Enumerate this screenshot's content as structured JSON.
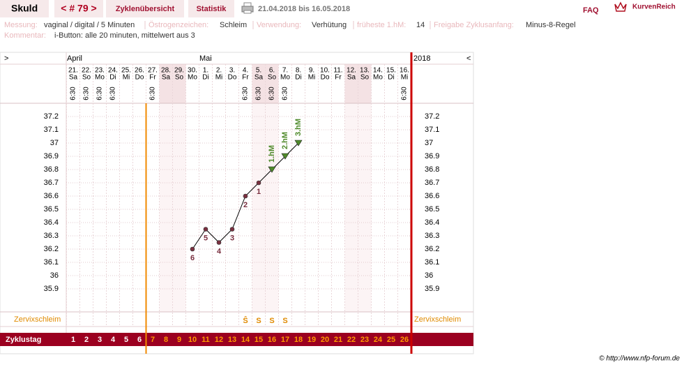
{
  "header": {
    "name": "Skuld",
    "cycle_nav": "< # 79 >",
    "tabs": [
      "Zyklenübersicht",
      "Statistik"
    ],
    "date_range": "21.04.2018 bis 16.05.2018",
    "faq": "FAQ",
    "logo": "KurvenReich"
  },
  "info": {
    "fields": [
      {
        "label": "Messung:",
        "value": "vaginal / digital / 5 Minuten"
      },
      {
        "label": "Östrogenzeichen:",
        "value": "Schleim"
      },
      {
        "label": "Verwendung:",
        "value": "Verhütung"
      },
      {
        "label": "früheste 1.hM:",
        "value": "14"
      },
      {
        "label": "Freigabe Zyklusanfang:",
        "value": "Minus-8-Regel"
      }
    ],
    "comment": {
      "label": "Kommentar:",
      "value": "i-Button: alle 20 minuten, mittelwert aus 3"
    }
  },
  "chart_nav": {
    "left": ">",
    "right": "<"
  },
  "chart_data": {
    "type": "line",
    "year": "2018",
    "months": [
      {
        "label": "April",
        "index": 0
      },
      {
        "label": "Mai",
        "index": 10
      }
    ],
    "categories": [
      "21.",
      "22.",
      "23.",
      "24.",
      "25.",
      "26.",
      "27.",
      "28.",
      "29.",
      "30.",
      "1.",
      "2.",
      "3.",
      "4.",
      "5.",
      "6.",
      "7.",
      "8.",
      "9.",
      "10.",
      "11.",
      "12.",
      "13.",
      "14.",
      "15.",
      "16."
    ],
    "weekdays": [
      "Sa",
      "So",
      "Mo",
      "Di",
      "Mi",
      "Do",
      "Fr",
      "Sa",
      "So",
      "Mo",
      "Di",
      "Mi",
      "Do",
      "Fr",
      "Sa",
      "So",
      "Mo",
      "Di",
      "Mi",
      "Do",
      "Fr",
      "Sa",
      "So",
      "Mo",
      "Di",
      "Mi"
    ],
    "times": [
      "6:30",
      "6:30",
      "6:30",
      "6:30",
      null,
      null,
      "6:30",
      null,
      null,
      null,
      null,
      null,
      null,
      "6:30",
      "6:30",
      "6:30",
      "6:30",
      null,
      null,
      null,
      null,
      null,
      null,
      null,
      null,
      "6:30"
    ],
    "highlight_columns": [
      7,
      8,
      14,
      15,
      21,
      22
    ],
    "series": [
      {
        "color": "#000000",
        "marker_color": "#7a3040",
        "hm_color": "#4f8a2b",
        "values": [
          null,
          null,
          null,
          null,
          null,
          null,
          null,
          null,
          null,
          36.2,
          36.35,
          36.25,
          36.35,
          36.6,
          36.7,
          36.8,
          36.9,
          37.0,
          null,
          null,
          null,
          null,
          null,
          null,
          null,
          null
        ],
        "point_labels": [
          null,
          null,
          null,
          null,
          null,
          null,
          null,
          null,
          null,
          "6",
          "5",
          "4",
          "3",
          "2",
          "1",
          "1.hM",
          "2.hM",
          "3.hM",
          null,
          null,
          null,
          null,
          null,
          null,
          null,
          null
        ],
        "markers": [
          null,
          null,
          null,
          null,
          null,
          null,
          null,
          null,
          null,
          "circle",
          "circle",
          "circle",
          "circle",
          "circle",
          "circle",
          "triangle",
          "triangle",
          "triangle",
          null,
          null,
          null,
          null,
          null,
          null,
          null,
          null
        ]
      }
    ],
    "ylim": [
      35.9,
      37.2
    ],
    "yticks": [
      35.9,
      36,
      36.1,
      36.2,
      36.3,
      36.4,
      36.5,
      36.6,
      36.7,
      36.8,
      36.9,
      37,
      37.1,
      37.2
    ],
    "grid": true,
    "mucus_label": "Zervixschleim",
    "mucus": [
      null,
      null,
      null,
      null,
      null,
      null,
      null,
      null,
      null,
      null,
      null,
      null,
      null,
      "Ŝ",
      "S",
      "S",
      "S",
      null,
      null,
      null,
      null,
      null,
      null,
      null,
      null,
      null
    ],
    "cycle_day_label": "Zyklustag",
    "cycle_days": [
      1,
      2,
      3,
      4,
      5,
      6,
      7,
      8,
      9,
      10,
      11,
      12,
      13,
      14,
      15,
      16,
      17,
      18,
      19,
      20,
      21,
      22,
      23,
      24,
      25,
      26
    ],
    "release_line_after": 6
  },
  "footer": "© http://www.nfp-forum.de"
}
